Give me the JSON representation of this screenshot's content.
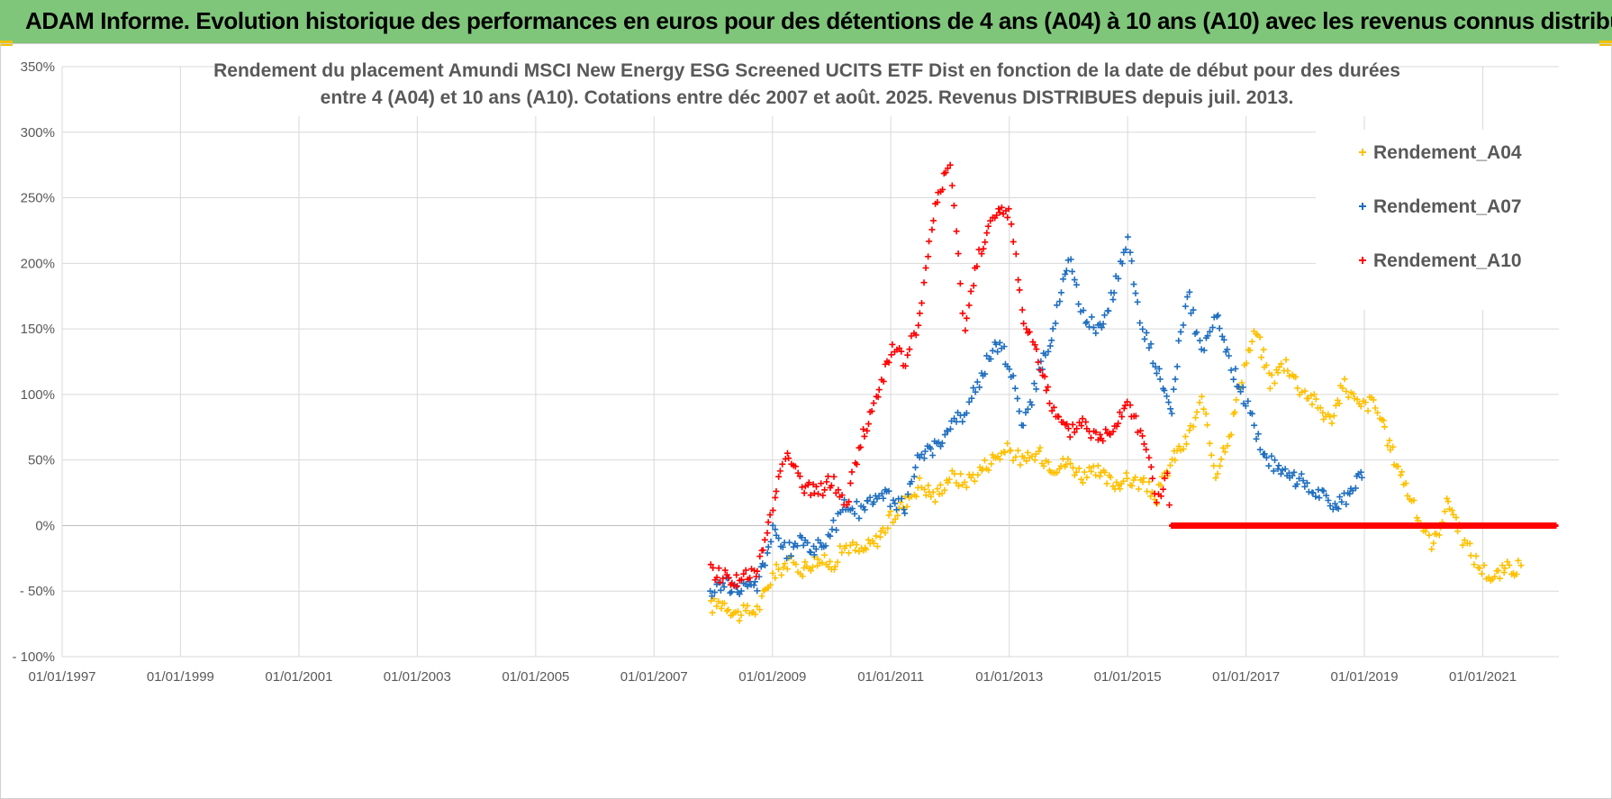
{
  "header": {
    "title": "ADAM Informe. Evolution historique des performances en euros pour des détentions de 4 ans (A04) à 10 ans (A10) avec les revenus connus distribués"
  },
  "colors": {
    "header_bg": "#7fc67a",
    "accent_corner": "#f2c200",
    "grid": "#d9d9d9",
    "zero_line": "#bfbfbf"
  },
  "chart_data": {
    "type": "scatter",
    "title_lines": [
      "Rendement du placement Amundi MSCI New Energy ESG Screened UCITS ETF Dist en fonction de la date de début pour des durées",
      "entre 4 (A04) et 10 ans (A10). Cotations entre déc 2007 et août. 2025. Revenus DISTRIBUES depuis juil. 2013."
    ],
    "xlabel": "",
    "ylabel": "",
    "x_axis": {
      "min": "1997-01-01",
      "max": "2022-04-15",
      "tick_labels": [
        "01/01/1997",
        "01/01/1999",
        "01/01/2001",
        "01/01/2003",
        "01/01/2005",
        "01/01/2007",
        "01/01/2009",
        "01/01/2011",
        "01/01/2013",
        "01/01/2015",
        "01/01/2017",
        "01/01/2019",
        "01/01/2021"
      ]
    },
    "y_axis": {
      "min": -100,
      "max": 350,
      "unit": "%",
      "tick_labels": [
        "- 100%",
        "- 50%",
        "0%",
        "50%",
        "100%",
        "150%",
        "200%",
        "250%",
        "300%",
        "350%"
      ]
    },
    "grid": true,
    "legend_position": "top-right",
    "marker": "+",
    "series": [
      {
        "name": "Rendement_A04",
        "color": "#ffc000",
        "points": [
          [
            "2007-12-15",
            -62
          ],
          [
            "2008-03-01",
            -58
          ],
          [
            "2008-06-01",
            -68
          ],
          [
            "2008-10-01",
            -64
          ],
          [
            "2009-01-01",
            -38
          ],
          [
            "2009-04-01",
            -28
          ],
          [
            "2009-07-01",
            -33
          ],
          [
            "2009-10-01",
            -26
          ],
          [
            "2010-01-01",
            -30
          ],
          [
            "2010-04-01",
            -15
          ],
          [
            "2010-07-01",
            -20
          ],
          [
            "2010-10-01",
            -12
          ],
          [
            "2011-01-01",
            5
          ],
          [
            "2011-04-01",
            18
          ],
          [
            "2011-07-01",
            32
          ],
          [
            "2011-10-01",
            22
          ],
          [
            "2012-01-01",
            38
          ],
          [
            "2012-04-01",
            33
          ],
          [
            "2012-07-01",
            42
          ],
          [
            "2012-10-01",
            52
          ],
          [
            "2013-01-01",
            58
          ],
          [
            "2013-04-01",
            48
          ],
          [
            "2013-07-01",
            55
          ],
          [
            "2013-10-01",
            45
          ],
          [
            "2014-01-01",
            48
          ],
          [
            "2014-04-01",
            38
          ],
          [
            "2014-07-01",
            40
          ],
          [
            "2014-10-01",
            32
          ],
          [
            "2015-01-01",
            35
          ],
          [
            "2015-04-01",
            32
          ],
          [
            "2015-07-01",
            22
          ],
          [
            "2015-10-01",
            50
          ],
          [
            "2016-01-01",
            65
          ],
          [
            "2016-04-01",
            95
          ],
          [
            "2016-07-01",
            40
          ],
          [
            "2016-10-01",
            75
          ],
          [
            "2017-01-01",
            128
          ],
          [
            "2017-03-01",
            148
          ],
          [
            "2017-06-01",
            110
          ],
          [
            "2017-09-01",
            125
          ],
          [
            "2017-12-01",
            105
          ],
          [
            "2018-03-01",
            95
          ],
          [
            "2018-06-01",
            80
          ],
          [
            "2018-09-01",
            108
          ],
          [
            "2018-12-01",
            90
          ],
          [
            "2019-03-01",
            95
          ],
          [
            "2019-06-01",
            62
          ],
          [
            "2019-09-01",
            35
          ],
          [
            "2019-12-01",
            5
          ],
          [
            "2020-03-01",
            -15
          ],
          [
            "2020-06-01",
            20
          ],
          [
            "2020-09-01",
            -10
          ],
          [
            "2020-12-01",
            -30
          ],
          [
            "2021-03-01",
            -40
          ],
          [
            "2021-06-01",
            -33
          ],
          [
            "2021-09-01",
            -32
          ]
        ]
      },
      {
        "name": "Rendement_A07",
        "color": "#1f6fc0",
        "points": [
          [
            "2007-12-15",
            -55
          ],
          [
            "2008-03-01",
            -42
          ],
          [
            "2008-06-01",
            -50
          ],
          [
            "2008-10-01",
            -45
          ],
          [
            "2009-01-01",
            -5
          ],
          [
            "2009-04-01",
            -20
          ],
          [
            "2009-07-01",
            -12
          ],
          [
            "2009-10-01",
            -18
          ],
          [
            "2010-01-01",
            -5
          ],
          [
            "2010-04-01",
            18
          ],
          [
            "2010-07-01",
            10
          ],
          [
            "2010-10-01",
            25
          ],
          [
            "2011-01-01",
            20
          ],
          [
            "2011-04-01",
            15
          ],
          [
            "2011-07-01",
            55
          ],
          [
            "2011-10-01",
            60
          ],
          [
            "2012-01-01",
            75
          ],
          [
            "2012-04-01",
            85
          ],
          [
            "2012-07-01",
            110
          ],
          [
            "2012-10-01",
            140
          ],
          [
            "2013-01-01",
            125
          ],
          [
            "2013-04-01",
            75
          ],
          [
            "2013-07-01",
            115
          ],
          [
            "2013-10-01",
            150
          ],
          [
            "2014-01-01",
            205
          ],
          [
            "2014-04-01",
            160
          ],
          [
            "2014-07-01",
            150
          ],
          [
            "2014-10-01",
            175
          ],
          [
            "2015-01-01",
            220
          ],
          [
            "2015-04-01",
            150
          ],
          [
            "2015-07-01",
            120
          ],
          [
            "2015-10-01",
            90
          ],
          [
            "2016-01-01",
            180
          ],
          [
            "2016-04-01",
            130
          ],
          [
            "2016-07-01",
            160
          ],
          [
            "2016-10-01",
            120
          ],
          [
            "2017-01-01",
            95
          ],
          [
            "2017-04-01",
            60
          ],
          [
            "2017-07-01",
            45
          ],
          [
            "2017-10-01",
            38
          ],
          [
            "2018-01-01",
            32
          ],
          [
            "2018-04-01",
            25
          ],
          [
            "2018-07-01",
            12
          ],
          [
            "2018-10-01",
            25
          ],
          [
            "2019-01-01",
            40
          ]
        ]
      },
      {
        "name": "Rendement_A10",
        "color": "#ff0000",
        "points": [
          [
            "2007-12-15",
            -35
          ],
          [
            "2008-03-01",
            -38
          ],
          [
            "2008-06-01",
            -42
          ],
          [
            "2008-10-01",
            -35
          ],
          [
            "2009-01-01",
            15
          ],
          [
            "2009-04-01",
            60
          ],
          [
            "2009-07-01",
            30
          ],
          [
            "2009-10-01",
            25
          ],
          [
            "2010-01-01",
            35
          ],
          [
            "2010-04-01",
            15
          ],
          [
            "2010-07-01",
            65
          ],
          [
            "2010-10-01",
            95
          ],
          [
            "2011-01-01",
            135
          ],
          [
            "2011-04-01",
            125
          ],
          [
            "2011-07-01",
            160
          ],
          [
            "2011-10-01",
            245
          ],
          [
            "2012-01-01",
            275
          ],
          [
            "2012-04-01",
            150
          ],
          [
            "2012-07-01",
            210
          ],
          [
            "2012-10-01",
            235
          ],
          [
            "2013-01-01",
            240
          ],
          [
            "2013-04-01",
            155
          ],
          [
            "2013-07-01",
            130
          ],
          [
            "2013-10-01",
            85
          ],
          [
            "2014-01-01",
            70
          ],
          [
            "2014-04-01",
            80
          ],
          [
            "2014-07-01",
            65
          ],
          [
            "2014-10-01",
            75
          ],
          [
            "2015-01-01",
            95
          ],
          [
            "2015-04-01",
            70
          ],
          [
            "2015-07-01",
            20
          ],
          [
            "2015-09-01",
            35
          ],
          [
            "2015-10-01",
            0
          ],
          [
            "2016-06-01",
            0
          ],
          [
            "2017-01-01",
            0
          ],
          [
            "2018-01-01",
            0
          ],
          [
            "2019-01-01",
            0
          ],
          [
            "2020-01-01",
            0
          ],
          [
            "2021-01-01",
            0
          ],
          [
            "2022-04-01",
            0
          ]
        ]
      }
    ]
  }
}
